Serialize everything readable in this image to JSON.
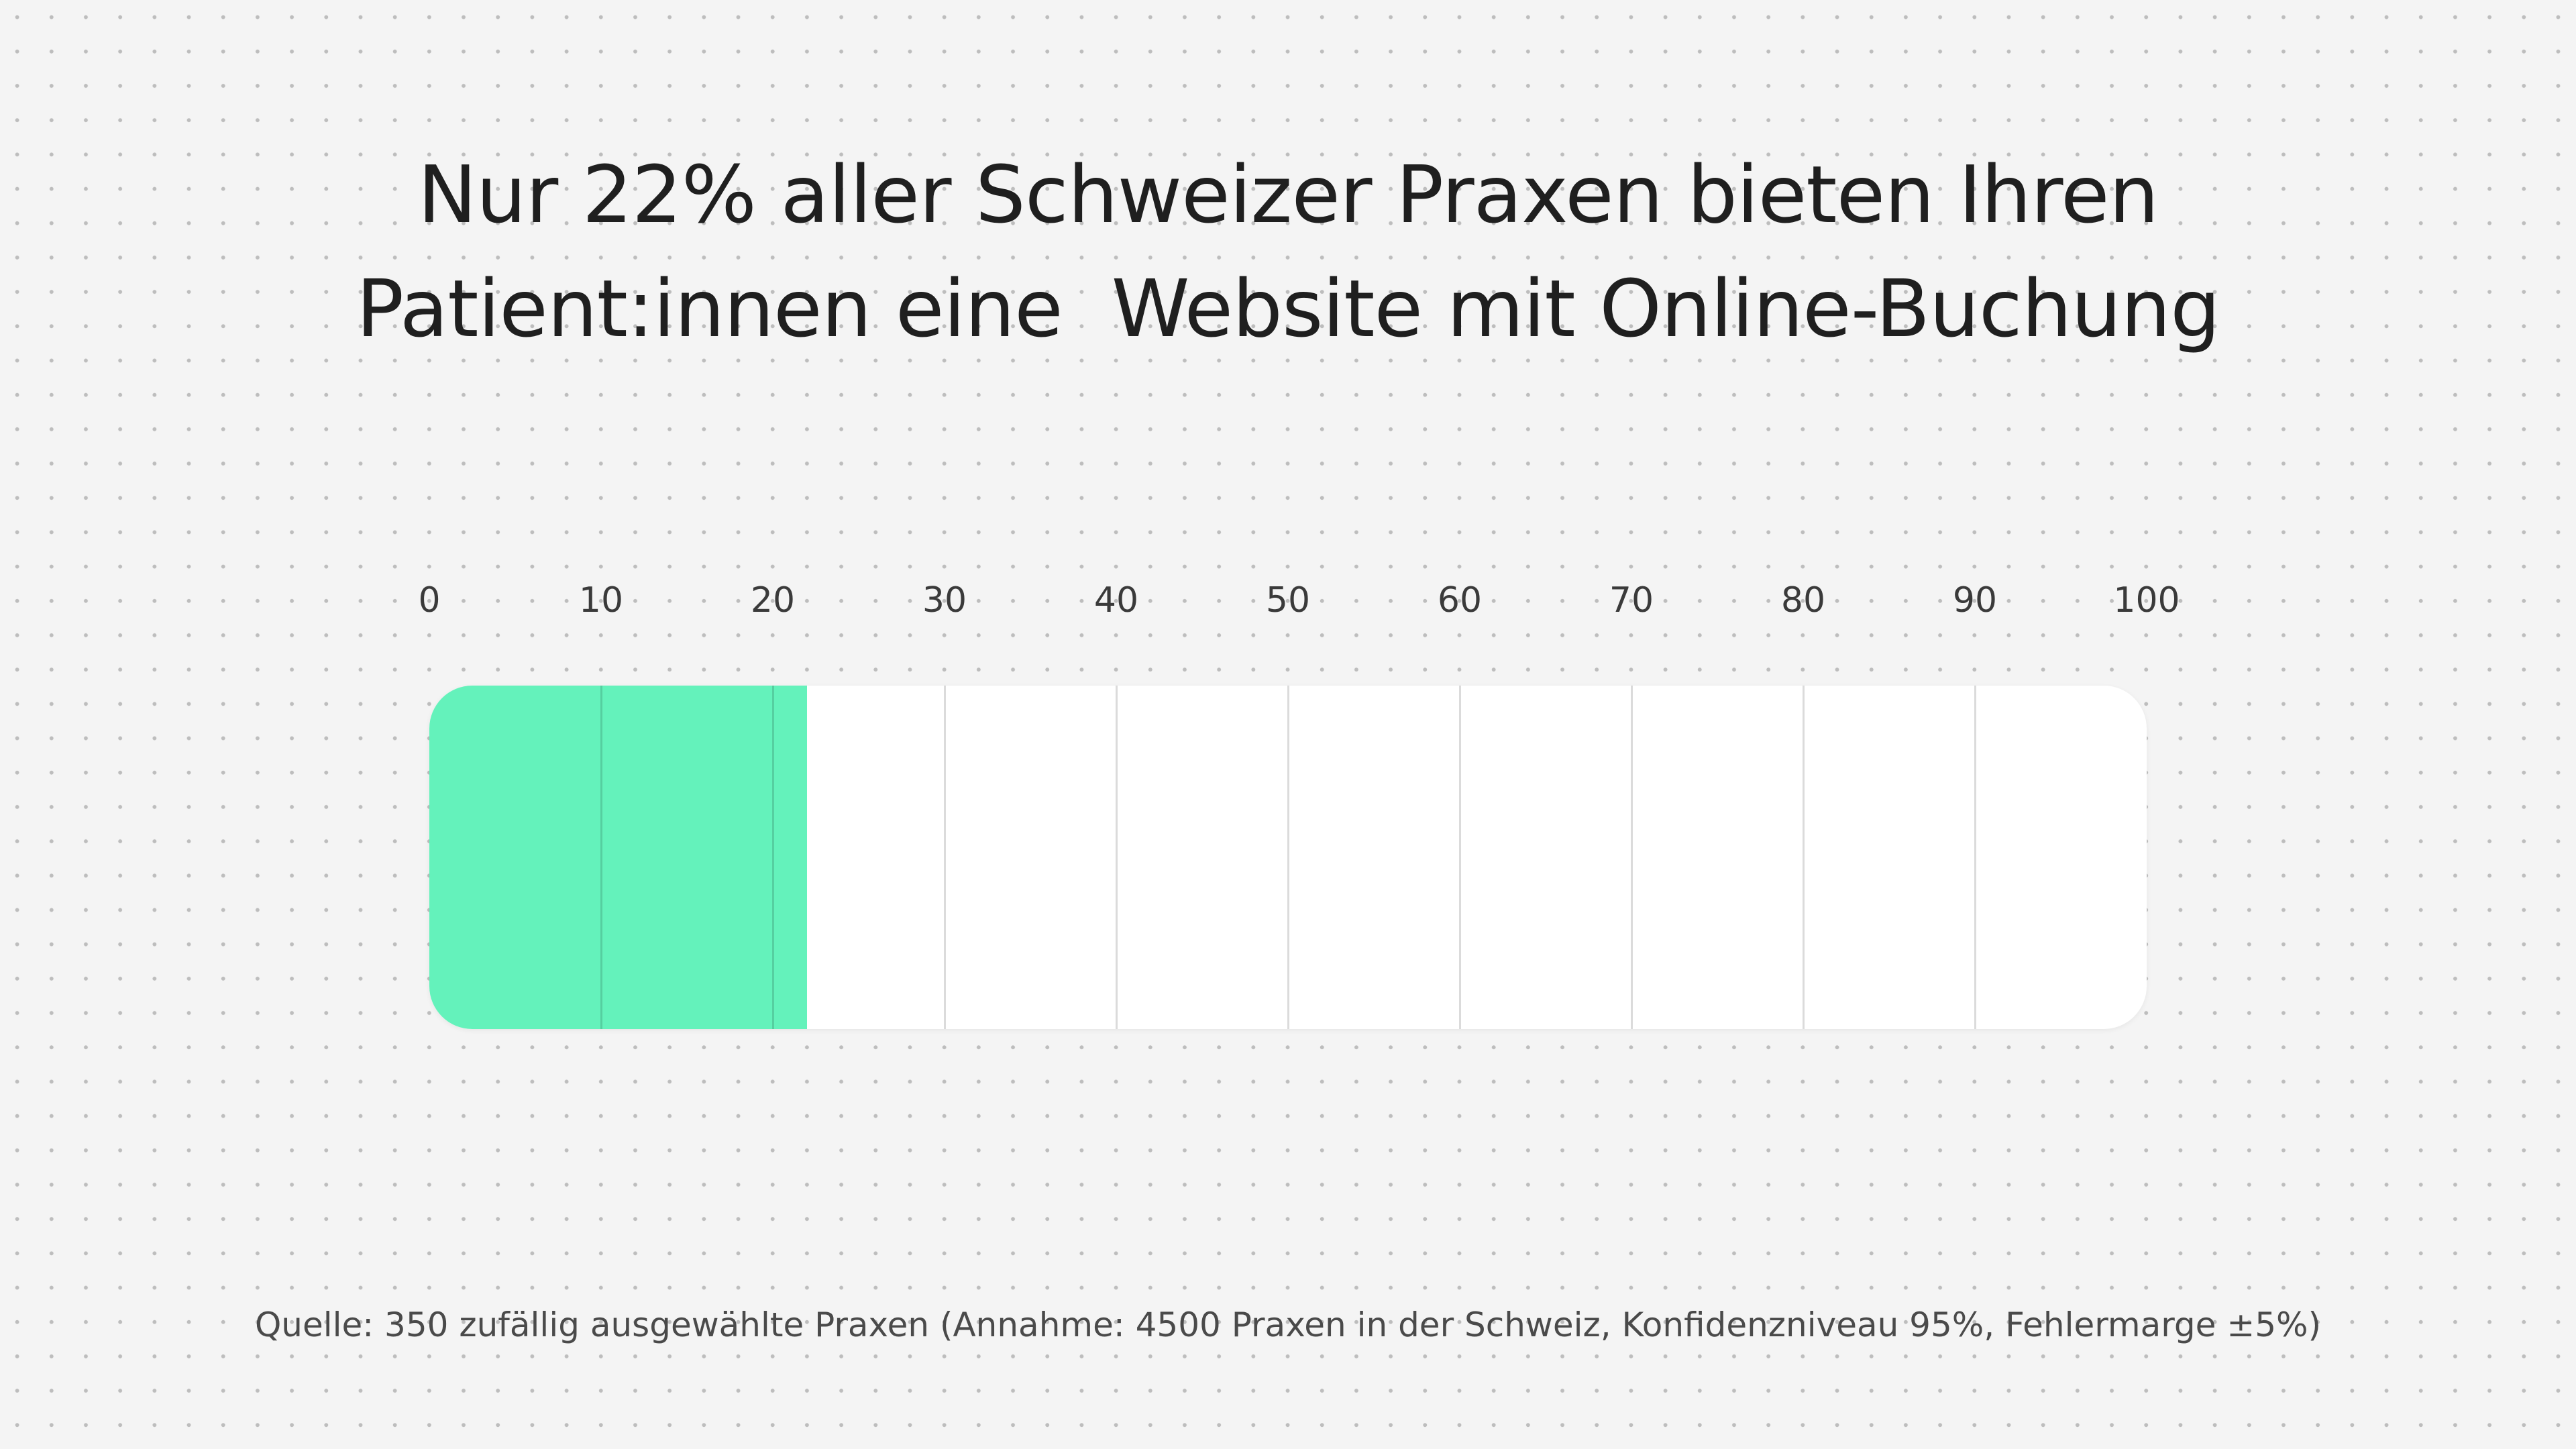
{
  "title_lines": [
    "Nur 22% aller Schweizer Praxen bieten Ihren",
    "Patient:innen eine  Website mit Online-Buchung"
  ],
  "source": "Quelle: 350 zufällig ausgewählte Praxen (Annahme: 4500 Praxen in der Schweiz, Konfidenzniveau 95%, Fehlermarge ±5%)",
  "colors": {
    "fill": "#64f2bb",
    "track": "#ffffff",
    "background": "#f4f4f4"
  },
  "chart_data": {
    "type": "bar",
    "orientation": "horizontal",
    "title": "Nur 22% aller Schweizer Praxen bieten Ihren Patient:innen eine  Website mit Online-Buchung",
    "values": [
      22
    ],
    "xlim": [
      0,
      100
    ],
    "ticks": [
      "0",
      "10",
      "20",
      "30",
      "40",
      "50",
      "60",
      "70",
      "80",
      "90",
      "100"
    ],
    "grid": true
  }
}
